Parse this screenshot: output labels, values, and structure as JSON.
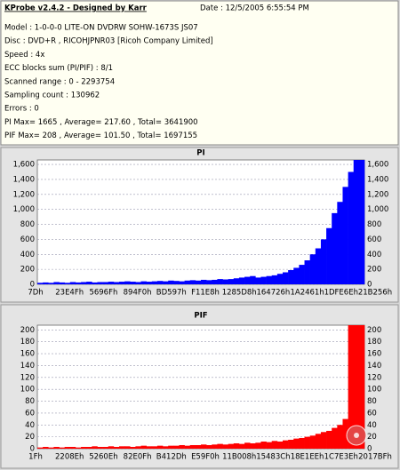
{
  "header": {
    "title": "KProbe v2.4.2 - Designed by Karr",
    "date": "Date : 12/5/2005 6:55:54 PM",
    "lines": [
      "Model : 1-0-0-0 LITE-ON DVDRW SOHW-1673S JS07",
      "Disc : DVD+R , RICOHJPNR03 [Ricoh Company Limited]",
      "Speed : 4x",
      "ECC blocks sum (PI/PIF) : 8/1",
      "Scanned range : 0 - 2293754",
      "Sampling count : 130962",
      "Errors : 0",
      "PI Max= 1665 , Average= 217.60 , Total= 3641900",
      "PIF Max= 208 , Average= 101.50 , Total= 1697155"
    ]
  },
  "chart_data": [
    {
      "type": "bar",
      "title": "PI",
      "color": "#0000ff",
      "grid": true,
      "xtick_labels": [
        "7Dh",
        "23E4Fh",
        "5696Fh",
        "894F0h",
        "BD597h",
        "F11E8h",
        "1285D8h",
        "164726h",
        "1A2461h",
        "1DFE6Eh",
        "21B256h"
      ],
      "ylim": [
        0,
        1660
      ],
      "yticks": [
        0,
        200,
        400,
        600,
        800,
        {
          "value": 1000,
          "label": "1,000"
        },
        {
          "value": 1200,
          "label": "1,200"
        },
        {
          "value": 1400,
          "label": "1,400"
        },
        {
          "value": 1600,
          "label": "1,600"
        }
      ],
      "values": [
        20,
        25,
        20,
        30,
        25,
        20,
        30,
        25,
        30,
        35,
        25,
        30,
        30,
        35,
        30,
        35,
        40,
        35,
        30,
        40,
        35,
        40,
        45,
        40,
        50,
        45,
        40,
        50,
        55,
        50,
        60,
        55,
        60,
        70,
        65,
        70,
        80,
        90,
        100,
        110,
        90,
        100,
        110,
        120,
        140,
        160,
        190,
        220,
        260,
        320,
        400,
        480,
        600,
        750,
        950,
        1100,
        1300,
        1500,
        1665,
        1665
      ]
    },
    {
      "type": "bar",
      "title": "PIF",
      "color": "#ff0000",
      "grid": true,
      "xtick_labels": [
        "1Fh",
        "2208Eh",
        "5260Eh",
        "82E0Fh",
        "B412Dh",
        "E59F0h",
        "11B008h",
        "15483Ch",
        "18E1EEh",
        "1C7E3Eh",
        "2017BFh"
      ],
      "ylim": [
        0,
        208
      ],
      "yticks": [
        0,
        20,
        40,
        60,
        80,
        100,
        120,
        140,
        160,
        180,
        200
      ],
      "values": [
        2,
        3,
        2,
        3,
        2,
        3,
        3,
        2,
        3,
        3,
        4,
        3,
        3,
        4,
        3,
        4,
        4,
        3,
        4,
        5,
        4,
        4,
        5,
        4,
        5,
        5,
        6,
        5,
        6,
        6,
        7,
        6,
        7,
        8,
        7,
        8,
        9,
        8,
        10,
        9,
        10,
        12,
        11,
        13,
        12,
        14,
        15,
        17,
        18,
        20,
        22,
        25,
        28,
        30,
        35,
        40,
        50,
        208,
        208,
        208
      ]
    }
  ]
}
